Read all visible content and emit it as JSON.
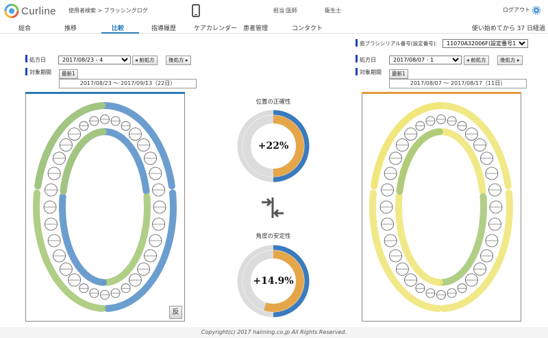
{
  "app": {
    "name": "Curline"
  },
  "header": {
    "breadcrumb": "使用者検索 > ブラッシングログ",
    "role_doctor": "担当:医師",
    "role_hygienist": "衛生士",
    "logout": "ログアウト"
  },
  "nav": {
    "tabs": [
      {
        "label": "総合"
      },
      {
        "label": "推移"
      },
      {
        "label": "比較"
      },
      {
        "label": "指導履歴"
      },
      {
        "label": "ケアカレンダー"
      },
      {
        "label": "患者管理"
      },
      {
        "label": "コンタクト"
      }
    ],
    "usage": "使い始めてから 37 日経過",
    "active_color": "#2a7ab8"
  },
  "left": {
    "date_label": "処方日",
    "date_value": "2017/08/23 - 4",
    "prev_button": "◂ 前処方",
    "next_button": "後処方 ▸",
    "period_label": "対象期間",
    "latest_button": "最新1",
    "range": "2017/08/23 ～ 2017/09/13（22日）",
    "bar_color": "#2a7ab8"
  },
  "right": {
    "serial_label": "歯ブラシシリアル番号(設定番号):",
    "serial_value": "11070A32006F(設定番号1)",
    "date_label": "処方日",
    "date_value": "2017/08/07 - 1",
    "prev_button": "◂ 前処方",
    "next_button": "後処方 ▸",
    "period_label": "対象期間",
    "latest_button": "最新1",
    "range": "2017/08/07 ～ 2017/08/17（11日）",
    "bar_color": "#e59a3a"
  },
  "center": {
    "gauge1": {
      "title": "位置の正確性",
      "value": "+22%",
      "outer": 0.5,
      "inner": 0.5
    },
    "gauge2": {
      "title": "角度の安定性",
      "value": "+14.9%",
      "outer": 0.5,
      "inner": 0.55
    },
    "colors": {
      "blue": "#3a7bbf",
      "orange": "#e5a64a",
      "gray": "#dcdcdc"
    },
    "compare_icon": "compare-arrows-icon"
  },
  "reverse_button": "反",
  "footer": "Copyright(c) 2017 haiming.co.jp All Rights Reserved.",
  "colors": {
    "blue_arch": "#5b93c9",
    "green_arch": "#a9c97a",
    "yellow_arch": "#efe57a",
    "marker": "#1a3fbf"
  }
}
